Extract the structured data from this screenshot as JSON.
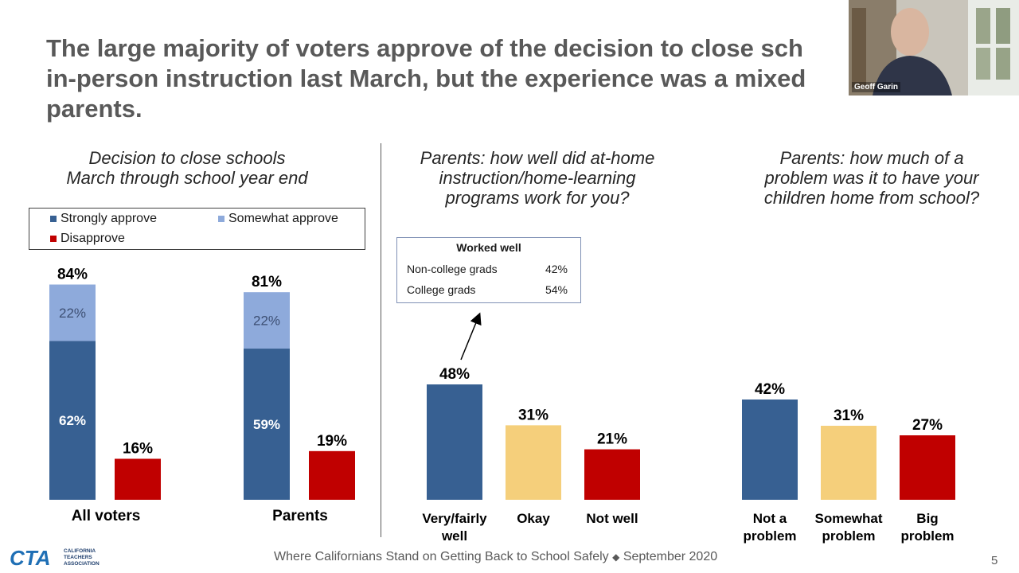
{
  "title_lines": [
    "The large majority of voters approve of the decision to close sch",
    "in-person instruction last March, but the experience was a mixed",
    "parents."
  ],
  "video": {
    "name": "Geoff Garin"
  },
  "footer": {
    "text": "Where Californians Stand on Getting Back to School Safely",
    "separator": "◆",
    "date": "September 2020",
    "page": "5"
  },
  "logo": {
    "letters": "CTA",
    "line1": "CALIFORNIA",
    "line2": "TEACHERS",
    "line3": "ASSOCIATION"
  },
  "colors": {
    "strong": "#376092",
    "somewhat": "#8eaadb",
    "disapprove": "#c00000",
    "okay": "#f5cf7b"
  },
  "chart_data": [
    {
      "type": "bar",
      "stacked": true,
      "title_lines": [
        "Decision to close schools",
        "March through school year end"
      ],
      "categories": [
        "All voters",
        "Parents"
      ],
      "legend": {
        "placement": "top",
        "entries": [
          "Strongly approve",
          "Somewhat approve",
          "Disapprove"
        ]
      },
      "series": [
        {
          "name": "Strongly approve",
          "values": [
            62,
            59
          ]
        },
        {
          "name": "Somewhat approve",
          "values": [
            22,
            22
          ]
        },
        {
          "name": "Disapprove",
          "values": [
            16,
            19
          ]
        }
      ],
      "approve_totals": [
        84,
        81
      ],
      "value_suffix": "%"
    },
    {
      "type": "bar",
      "title_lines": [
        "Parents:  how well did at-home",
        "instruction/home-learning",
        "programs work for you?"
      ],
      "categories": [
        [
          "Very/fairly",
          "well"
        ],
        [
          "Okay"
        ],
        [
          "Not well"
        ]
      ],
      "values": [
        48,
        31,
        21
      ],
      "value_suffix": "%",
      "annotation": {
        "title": "Worked well",
        "rows": [
          {
            "label": "Non-college grads",
            "value": "42%"
          },
          {
            "label": "College grads",
            "value": "54%"
          }
        ]
      }
    },
    {
      "type": "bar",
      "title_lines": [
        "Parents: how much of a",
        "problem was it to have your",
        "children home from school?"
      ],
      "categories": [
        [
          "Not a",
          "problem"
        ],
        [
          "Somewhat",
          "problem"
        ],
        [
          "Big",
          "problem"
        ]
      ],
      "values": [
        42,
        31,
        27
      ],
      "value_suffix": "%"
    }
  ]
}
